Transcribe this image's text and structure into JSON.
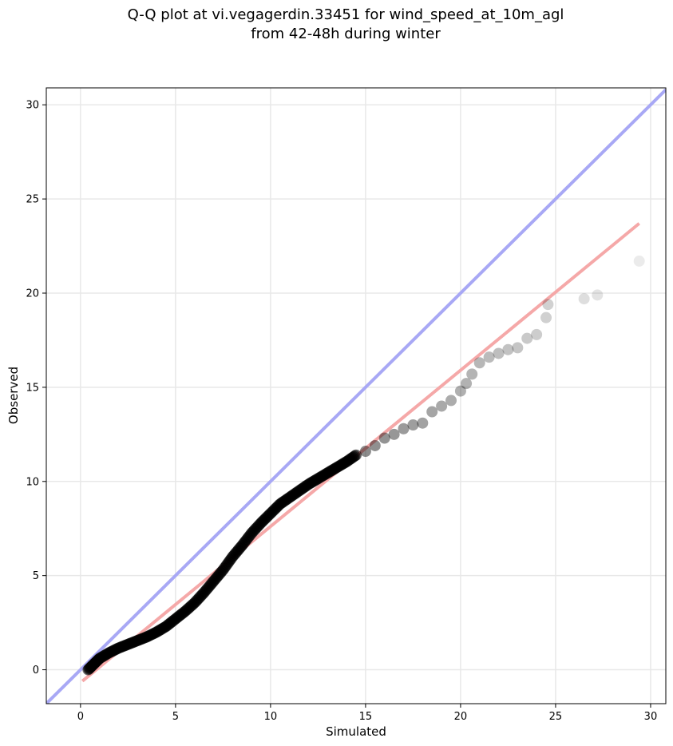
{
  "chart_data": {
    "type": "scatter",
    "title": "Q-Q plot at vi.vegagerdin.33451 for wind_speed_at_10m_agl",
    "subtitle": "from 42-48h during winter",
    "xlabel": "Simulated",
    "ylabel": "Observed",
    "xlim": [
      -1.8,
      30.8
    ],
    "ylim": [
      -1.8,
      30.9
    ],
    "xticks": [
      0,
      5,
      10,
      15,
      20,
      25,
      30
    ],
    "yticks": [
      0,
      5,
      10,
      15,
      20,
      25,
      30
    ],
    "grid": true,
    "reference_line": {
      "x": [
        -1.8,
        30.8
      ],
      "y": [
        -1.8,
        30.8
      ],
      "color": "#a8a8f5"
    },
    "fit_line": {
      "x": [
        0.1,
        29.4
      ],
      "y": [
        -0.6,
        23.7
      ],
      "color": "#f5a8a8"
    },
    "points_curve": {
      "x": [
        0.4,
        0.7,
        1.0,
        1.5,
        2.0,
        2.5,
        3.0,
        3.5,
        4.0,
        4.5,
        5.0,
        5.5,
        6.0,
        6.5,
        7.0,
        7.5,
        8.0,
        8.5,
        9.0,
        9.5,
        10.0,
        10.5,
        11.0,
        11.5,
        12.0,
        12.5,
        13.0,
        13.5,
        14.0,
        14.5
      ],
      "y": [
        0.0,
        0.3,
        0.6,
        0.9,
        1.15,
        1.35,
        1.55,
        1.75,
        2.0,
        2.3,
        2.7,
        3.1,
        3.55,
        4.1,
        4.7,
        5.3,
        6.0,
        6.6,
        7.25,
        7.8,
        8.3,
        8.8,
        9.15,
        9.5,
        9.85,
        10.15,
        10.45,
        10.75,
        11.05,
        11.4
      ]
    },
    "points_tail": {
      "x": [
        15.0,
        15.5,
        16.0,
        16.5,
        17.0,
        17.5,
        18.0,
        18.5,
        19.0,
        19.5,
        20.0,
        20.3,
        20.6,
        21.0,
        21.5,
        22.0,
        22.5,
        23.0,
        23.5,
        24.0,
        24.5,
        24.6,
        26.5,
        27.2,
        29.4
      ],
      "y": [
        11.6,
        11.9,
        12.3,
        12.5,
        12.8,
        13.0,
        13.1,
        13.7,
        14.0,
        14.3,
        14.8,
        15.2,
        15.7,
        16.3,
        16.6,
        16.8,
        17.0,
        17.1,
        17.6,
        17.8,
        18.7,
        19.4,
        19.7,
        19.9,
        21.7
      ]
    }
  }
}
